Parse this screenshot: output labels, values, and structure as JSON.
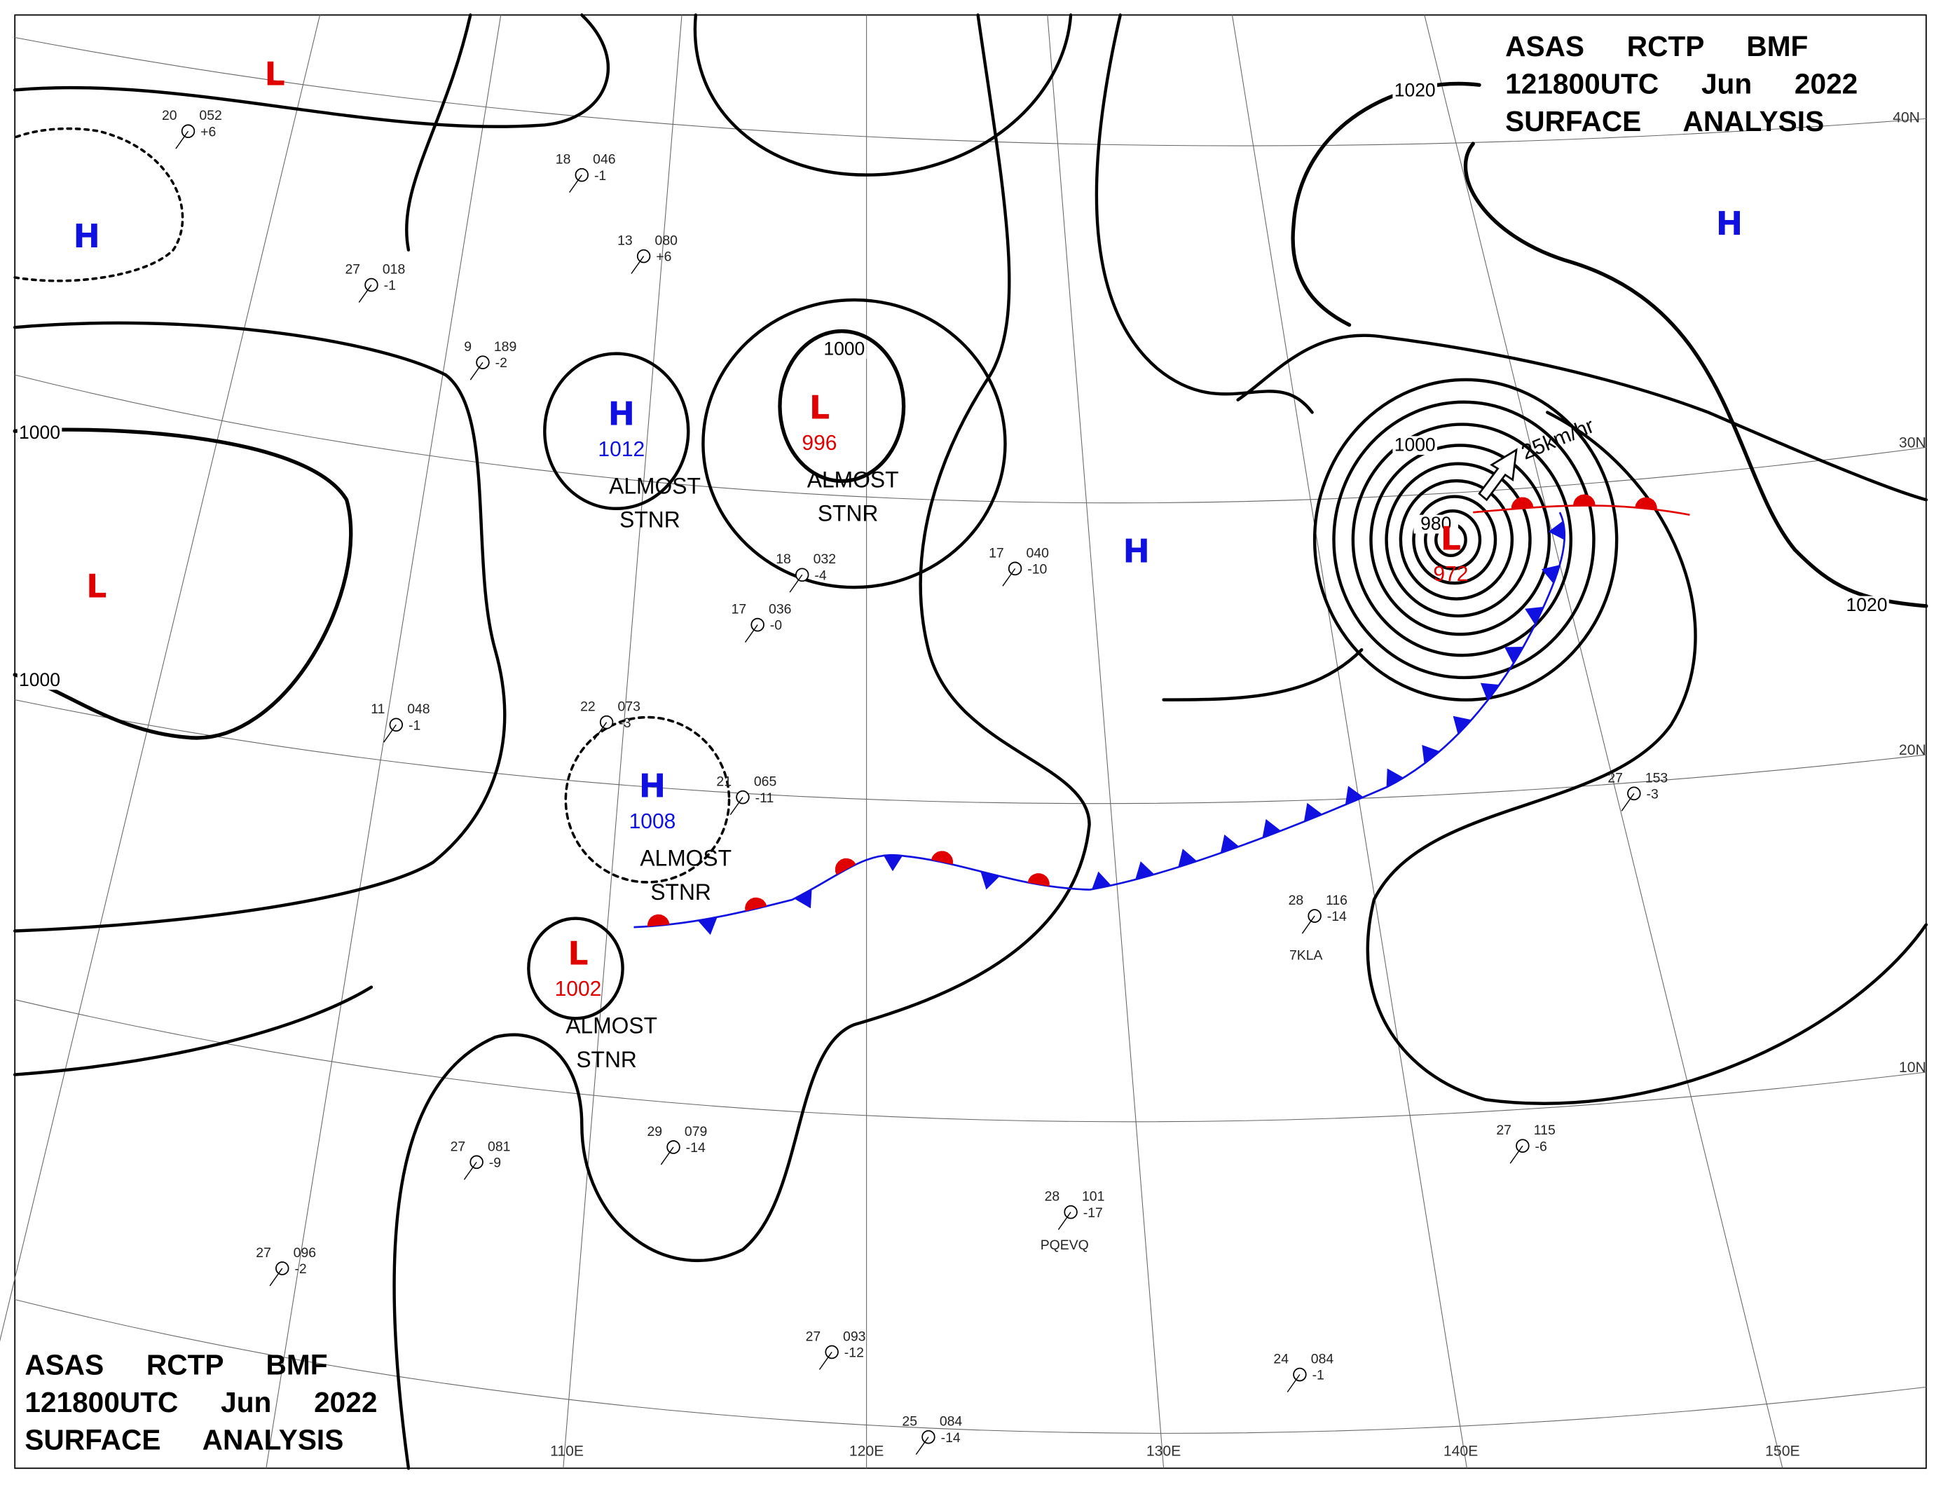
{
  "header": {
    "lines": [
      "ASAS RCTP BMF",
      "121800UTC Jun 2022",
      "SURFACE ANALYSIS"
    ]
  },
  "footer": {
    "lines": [
      "ASAS RCTP BMF",
      "121800UTC Jun 2022",
      "SURFACE ANALYSIS"
    ]
  },
  "graticule": {
    "latitudes": [
      "40N",
      "30N",
      "20N",
      "10N"
    ],
    "longitudes": [
      "110E",
      "120E",
      "130E",
      "140E",
      "150E"
    ]
  },
  "isobar_labels": [
    "1020",
    "1020",
    "1000",
    "1000",
    "980",
    "1000",
    "1000"
  ],
  "pressure_systems": [
    {
      "symbol": "L",
      "color": "#e00000"
    },
    {
      "symbol": "H",
      "color": "#1010e0"
    },
    {
      "symbol": "L",
      "color": "#e00000"
    },
    {
      "symbol": "H",
      "color": "#1010e0",
      "value": "1012",
      "motion": [
        "ALMOST",
        "STNR"
      ]
    },
    {
      "symbol": "L",
      "color": "#e00000",
      "value": "996",
      "motion": [
        "ALMOST",
        "STNR"
      ]
    },
    {
      "symbol": "H",
      "color": "#1010e0",
      "value": "1008",
      "motion": [
        "ALMOST",
        "STNR"
      ]
    },
    {
      "symbol": "L",
      "color": "#e00000",
      "value": "1002",
      "motion": [
        "ALMOST",
        "STNR"
      ]
    },
    {
      "symbol": "H",
      "color": "#1010e0"
    },
    {
      "symbol": "L",
      "color": "#e00000",
      "value": "972"
    },
    {
      "symbol": "H",
      "color": "#1010e0"
    }
  ],
  "front_motion": "25km/hr",
  "front_colors": {
    "warm": "#e00000",
    "cold": "#1010e0"
  },
  "stations": [
    {
      "temp": "20",
      "pressure": "052",
      "tendency": "+6"
    },
    {
      "temp": "18",
      "pressure": "046",
      "tendency": "-1"
    },
    {
      "temp": "13",
      "pressure": "080",
      "tendency": "+6"
    },
    {
      "temp": "27",
      "pressure": "018",
      "tendency": "-1"
    },
    {
      "temp": "9",
      "pressure": "189",
      "tendency": "-2"
    },
    {
      "temp": "11",
      "pressure": "048",
      "tendency": "-1"
    },
    {
      "temp": "22",
      "pressure": "073",
      "tendency": "-3"
    },
    {
      "temp": "21",
      "pressure": "065",
      "tendency": "-11"
    },
    {
      "temp": "18",
      "pressure": "032",
      "tendency": "-4"
    },
    {
      "temp": "17",
      "pressure": "036",
      "tendency": "-0"
    },
    {
      "temp": "17",
      "pressure": "040",
      "tendency": "-10"
    },
    {
      "temp": "28",
      "pressure": "116",
      "tendency": "-14"
    },
    {
      "temp": "27",
      "pressure": "153",
      "tendency": "-3"
    },
    {
      "temp": "27",
      "pressure": "115",
      "tendency": "-6"
    },
    {
      "temp": "29",
      "pressure": "079",
      "tendency": "-14"
    },
    {
      "temp": "27",
      "pressure": "081",
      "tendency": "-9"
    },
    {
      "temp": "27",
      "pressure": "096",
      "tendency": "-2"
    },
    {
      "temp": "27",
      "pressure": "093",
      "tendency": "-12"
    },
    {
      "temp": "25",
      "pressure": "084",
      "tendency": "-14"
    },
    {
      "temp": "28",
      "pressure": "101",
      "tendency": "-17"
    },
    {
      "temp": "24",
      "pressure": "084",
      "tendency": "-1"
    }
  ],
  "station_ids": [
    "7KLA",
    "PQEVQ"
  ]
}
